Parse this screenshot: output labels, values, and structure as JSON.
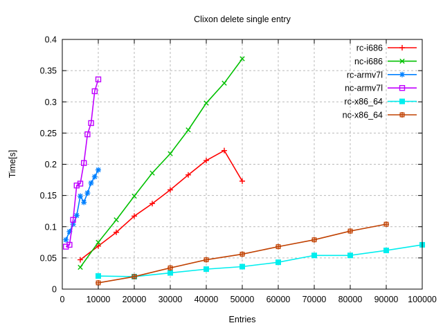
{
  "chart_data": {
    "type": "line",
    "title": "Clixon delete single entry",
    "xlabel": "Entries",
    "ylabel": "Time[s]",
    "xlim": [
      0,
      100000
    ],
    "ylim": [
      0,
      0.4
    ],
    "x_ticks": [
      0,
      10000,
      20000,
      30000,
      40000,
      50000,
      60000,
      70000,
      80000,
      90000,
      100000
    ],
    "x_tick_labels": [
      "0",
      "10000",
      "20000",
      "30000",
      "40000",
      "50000",
      "60000",
      "70000",
      "80000",
      "90000",
      "100000"
    ],
    "y_ticks": [
      0,
      0.05,
      0.1,
      0.15,
      0.2,
      0.25,
      0.3,
      0.35,
      0.4
    ],
    "y_tick_labels": [
      "0",
      "0.05",
      "0.1",
      "0.15",
      "0.2",
      "0.25",
      "0.3",
      "0.35",
      "0.4"
    ],
    "grid": true,
    "legend_position": "top-right-inside",
    "grid_color": "#b9b9b9",
    "axis_color": "#000000",
    "background_color": "#ffffff",
    "series": [
      {
        "name": "rc-i686",
        "color": "#ff0000",
        "marker": "plus",
        "x": [
          5000,
          10000,
          15000,
          20000,
          25000,
          30000,
          35000,
          40000,
          45000,
          50000
        ],
        "y": [
          0.047,
          0.069,
          0.091,
          0.117,
          0.137,
          0.159,
          0.183,
          0.206,
          0.222,
          0.173
        ]
      },
      {
        "name": "nc-i686",
        "color": "#00c000",
        "marker": "cross",
        "x": [
          5000,
          10000,
          15000,
          20000,
          25000,
          30000,
          35000,
          40000,
          45000,
          50000
        ],
        "y": [
          0.035,
          0.075,
          0.111,
          0.149,
          0.186,
          0.217,
          0.255,
          0.298,
          0.33,
          0.369
        ]
      },
      {
        "name": "rc-armv7l",
        "color": "#0080ff",
        "marker": "asterisk",
        "x": [
          1000,
          2000,
          3000,
          4000,
          5000,
          6000,
          7000,
          8000,
          9000,
          10000
        ],
        "y": [
          0.079,
          0.092,
          0.104,
          0.118,
          0.149,
          0.139,
          0.154,
          0.17,
          0.18,
          0.191
        ]
      },
      {
        "name": "nc-armv7l",
        "color": "#c000ff",
        "marker": "open-square",
        "x": [
          1000,
          2000,
          3000,
          4000,
          5000,
          6000,
          7000,
          8000,
          9000,
          10000
        ],
        "y": [
          0.068,
          0.071,
          0.111,
          0.166,
          0.169,
          0.202,
          0.248,
          0.266,
          0.317,
          0.336
        ]
      },
      {
        "name": "rc-x86_64",
        "color": "#00eeee",
        "marker": "filled-square",
        "x": [
          10000,
          20000,
          30000,
          40000,
          50000,
          60000,
          70000,
          80000,
          90000,
          100000
        ],
        "y": [
          0.021,
          0.02,
          0.026,
          0.032,
          0.036,
          0.043,
          0.054,
          0.054,
          0.062,
          0.071
        ]
      },
      {
        "name": "nc-x86_64",
        "color": "#c04000",
        "marker": "square-plus",
        "x": [
          10000,
          20000,
          30000,
          40000,
          50000,
          60000,
          70000,
          80000,
          90000
        ],
        "y": [
          0.01,
          0.02,
          0.034,
          0.047,
          0.056,
          0.068,
          0.079,
          0.093,
          0.104
        ]
      }
    ]
  }
}
